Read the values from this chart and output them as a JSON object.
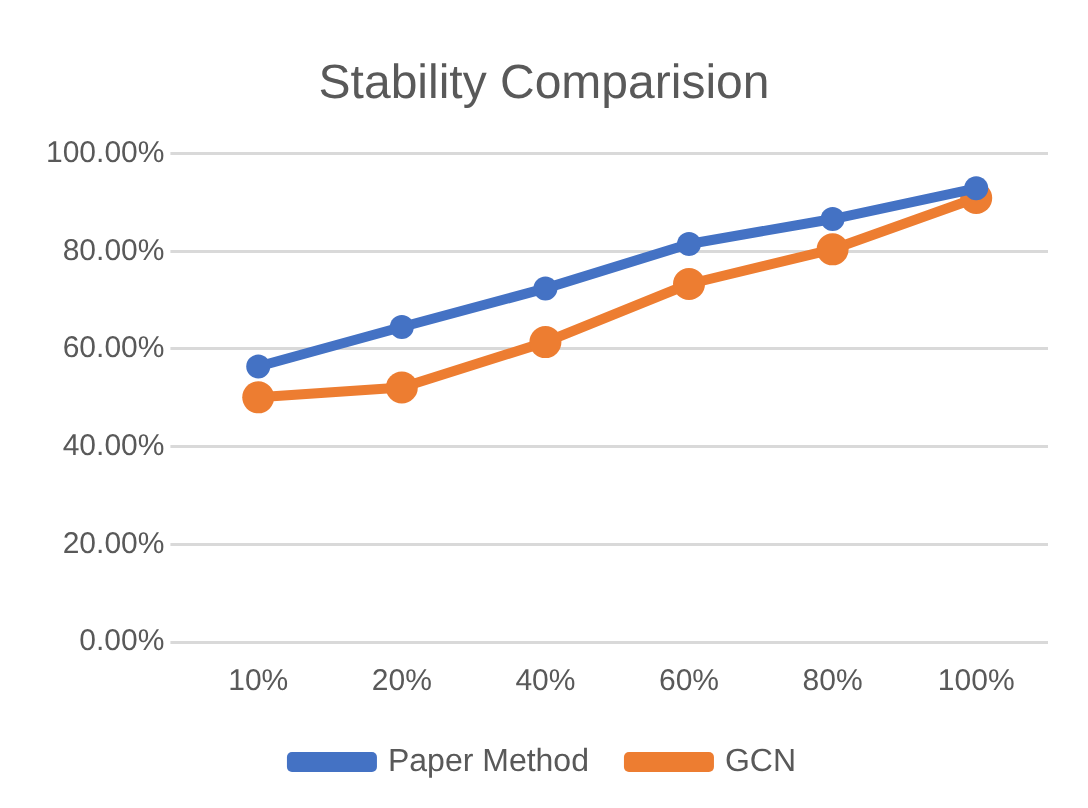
{
  "chart_data": {
    "type": "line",
    "title": "Stability Comparision",
    "categories": [
      "10%",
      "20%",
      "40%",
      "60%",
      "80%",
      "100%"
    ],
    "series": [
      {
        "name": "Paper Method",
        "color": "#4472c4",
        "values": [
          56.4,
          64.5,
          72.4,
          81.5,
          86.6,
          92.9
        ]
      },
      {
        "name": "GCN",
        "color": "#ed7d31",
        "values": [
          50.1,
          52.1,
          61.4,
          73.3,
          80.4,
          90.9
        ]
      }
    ],
    "ylim": [
      0,
      100
    ],
    "yticks": [
      {
        "value": 0,
        "label": "0.00%"
      },
      {
        "value": 20,
        "label": "20.00%"
      },
      {
        "value": 40,
        "label": "40.00%"
      },
      {
        "value": 60,
        "label": "60.00%"
      },
      {
        "value": 80,
        "label": "80.00%"
      },
      {
        "value": 100,
        "label": "100.00%"
      }
    ],
    "grid": "y",
    "legend": "bottom",
    "marker": "circle",
    "line_style": "solid"
  }
}
